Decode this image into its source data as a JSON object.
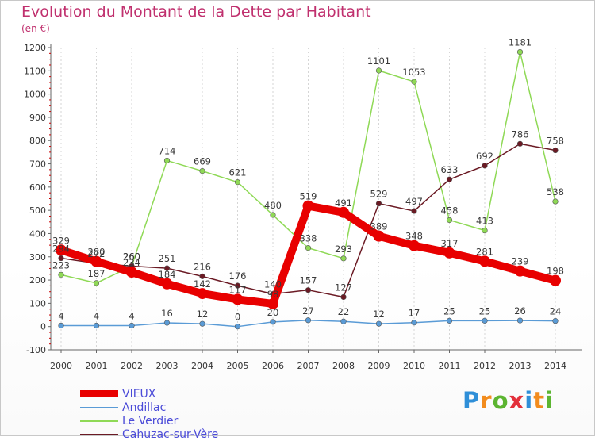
{
  "header": {
    "title": "Evolution du Montant de la Dette par Habitant",
    "unit": "(en €)"
  },
  "brand": {
    "name": "Proxiti",
    "letters": [
      {
        "ch": "P",
        "color": "#2f8fd8"
      },
      {
        "ch": "r",
        "color": "#f28c1e"
      },
      {
        "ch": "o",
        "color": "#5cb531"
      },
      {
        "ch": "x",
        "color": "#e3303b"
      },
      {
        "ch": "i",
        "color": "#2f8fd8"
      },
      {
        "ch": "t",
        "color": "#f28c1e"
      },
      {
        "ch": "i",
        "color": "#5cb531"
      }
    ]
  },
  "chart_data": {
    "type": "line",
    "title": "Evolution du Montant de la Dette par Habitant",
    "ylabel": "(en €)",
    "xlabel": "",
    "categories": [
      "2000",
      "2001",
      "2002",
      "2003",
      "2004",
      "2005",
      "2006",
      "2007",
      "2008",
      "2009",
      "2010",
      "2011",
      "2012",
      "2013",
      "2014"
    ],
    "ylim": [
      -100,
      1200
    ],
    "yticks": [
      -100,
      0,
      100,
      200,
      300,
      400,
      500,
      600,
      700,
      800,
      900,
      1000,
      1100,
      1200
    ],
    "grid": "vertical",
    "legend_position": "bottom-left",
    "series": [
      {
        "name": "VIEUX",
        "color": "#e80000",
        "values": [
          329,
          280,
          234,
          184,
          142,
          117,
          98,
          519,
          491,
          389,
          348,
          317,
          281,
          239,
          198
        ]
      },
      {
        "name": "Andillac",
        "color": "#5a9bd6",
        "values": [
          4,
          4,
          4,
          16,
          12,
          0,
          20,
          27,
          22,
          12,
          17,
          25,
          25,
          26,
          24
        ]
      },
      {
        "name": "Le Verdier",
        "color": "#8fd956",
        "values": [
          223,
          187,
          260,
          714,
          669,
          621,
          480,
          338,
          293,
          1101,
          1053,
          458,
          413,
          1181,
          538
        ]
      },
      {
        "name": "Cahuzac-sur-Vère",
        "color": "#6b1a24",
        "values": [
          294,
          272,
          260,
          251,
          216,
          176,
          140,
          157,
          127,
          529,
          497,
          633,
          692,
          786,
          758
        ]
      }
    ]
  }
}
